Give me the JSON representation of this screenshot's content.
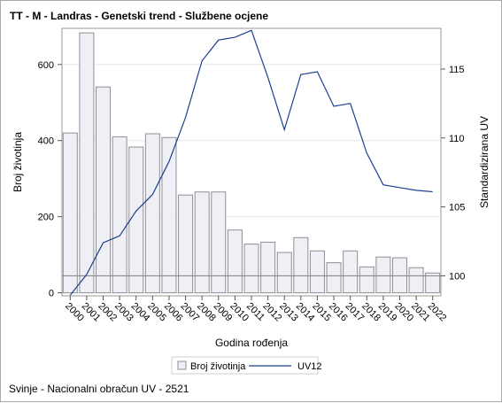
{
  "title": "TT - M - Landras - Genetski trend - Službene ocjene",
  "footnote": "Svinje - Nacionalni obračun UV - 2521",
  "chart_data": {
    "type": "bar+line",
    "categories": [
      "2000",
      "2001",
      "2002",
      "2003",
      "2004",
      "2005",
      "2006",
      "2007",
      "2008",
      "2009",
      "2010",
      "2011",
      "2012",
      "2013",
      "2014",
      "2015",
      "2016",
      "2017",
      "2018",
      "2019",
      "2020",
      "2021",
      "2022"
    ],
    "series": [
      {
        "name": "Broj životinja",
        "type": "bar",
        "axis": "left",
        "values": [
          420,
          683,
          541,
          410,
          383,
          418,
          408,
          257,
          265,
          265,
          165,
          128,
          133,
          106,
          145,
          110,
          79,
          110,
          68,
          94,
          92,
          66,
          52
        ]
      },
      {
        "name": "UV12",
        "type": "line",
        "axis": "right",
        "values": [
          98.6,
          100.1,
          102.4,
          102.9,
          104.7,
          105.9,
          108.3,
          111.5,
          115.6,
          117.1,
          117.3,
          117.8,
          114.4,
          110.6,
          114.6,
          114.8,
          112.3,
          112.5,
          108.9,
          106.6,
          106.4,
          106.2,
          106.1
        ]
      }
    ],
    "xlabel": "Godina rođenja",
    "ylabel": "Broj životinja",
    "y2label": "Standardizirana UV",
    "yticks": [
      0,
      200,
      400,
      600
    ],
    "y2ticks": [
      100,
      105,
      110,
      115
    ],
    "ylim": [
      -8,
      695
    ],
    "y2lim": [
      98.55,
      117.95
    ],
    "reference_line_y2": 100,
    "legend_position": "bottom",
    "colors": {
      "bar_fill": "#eef0f5",
      "bar_stroke": "#8f8f96",
      "line": "#1e3f8f",
      "ref_line": "#7f7f7f",
      "grid": "#e8e8e8",
      "axis": "#999999"
    }
  }
}
